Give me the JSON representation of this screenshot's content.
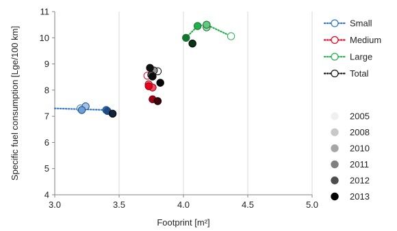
{
  "chart_data": {
    "type": "scatter",
    "xlabel": "Footprint [m²]",
    "ylabel": "Specific fuel consumption [Lge/100 km]",
    "xlim": [
      3.0,
      5.0
    ],
    "ylim": [
      4,
      11
    ],
    "xticks": [
      3.0,
      3.5,
      4.0,
      4.5,
      5.0
    ],
    "xtick_labels": [
      "3.0",
      "3.5",
      "4.0",
      "4.5",
      "5.0"
    ],
    "yticks": [
      4,
      5,
      6,
      7,
      8,
      9,
      10,
      11
    ],
    "ytick_labels": [
      "4",
      "5",
      "6",
      "7",
      "8",
      "9",
      "10",
      "11"
    ],
    "grid": "vertical",
    "legend_position": "right",
    "series": [
      {
        "name": "Small",
        "color": "#2e75c8",
        "points": [
          {
            "x": 3.2,
            "y": 7.3,
            "year": "2005"
          },
          {
            "x": 3.24,
            "y": 7.38,
            "year": "2008"
          },
          {
            "x": 3.21,
            "y": 7.24,
            "year": "2010"
          },
          {
            "x": 3.4,
            "y": 7.24,
            "year": "2011"
          },
          {
            "x": 3.41,
            "y": 7.2,
            "year": "2012"
          },
          {
            "x": 3.45,
            "y": 7.1,
            "year": "2013"
          }
        ]
      },
      {
        "name": "Medium",
        "color": "#e8001c",
        "points": [
          {
            "x": 3.72,
            "y": 8.55,
            "year": "2005"
          },
          {
            "x": 3.73,
            "y": 8.22,
            "year": "2008"
          },
          {
            "x": 3.76,
            "y": 8.1,
            "year": "2010"
          },
          {
            "x": 3.73,
            "y": 8.15,
            "year": "2011"
          },
          {
            "x": 3.76,
            "y": 7.65,
            "year": "2012"
          },
          {
            "x": 3.8,
            "y": 7.58,
            "year": "2013"
          }
        ]
      },
      {
        "name": "Large",
        "color": "#22b04b",
        "points": [
          {
            "x": 4.37,
            "y": 10.06,
            "year": "2005"
          },
          {
            "x": 4.18,
            "y": 10.4,
            "year": "2008"
          },
          {
            "x": 4.18,
            "y": 10.5,
            "year": "2010"
          },
          {
            "x": 4.11,
            "y": 10.45,
            "year": "2011"
          },
          {
            "x": 4.02,
            "y": 10.0,
            "year": "2012"
          },
          {
            "x": 4.07,
            "y": 9.78,
            "year": "2013"
          }
        ]
      },
      {
        "name": "Total",
        "color": "#111111",
        "points": [
          {
            "x": 3.8,
            "y": 8.72,
            "year": "2005"
          },
          {
            "x": 3.77,
            "y": 8.75,
            "year": "2008"
          },
          {
            "x": 3.75,
            "y": 8.58,
            "year": "2010"
          },
          {
            "x": 3.74,
            "y": 8.85,
            "year": "2011"
          },
          {
            "x": 3.76,
            "y": 8.52,
            "year": "2012"
          },
          {
            "x": 3.82,
            "y": 8.28,
            "year": "2013"
          }
        ]
      }
    ],
    "years": [
      {
        "label": "2005",
        "color": "#f0f0f0"
      },
      {
        "label": "2008",
        "color": "#c8c8c8"
      },
      {
        "label": "2010",
        "color": "#a6a6a6"
      },
      {
        "label": "2011",
        "color": "#7f7f7f"
      },
      {
        "label": "2012",
        "color": "#4d4d4d"
      },
      {
        "label": "2013",
        "color": "#000000"
      }
    ]
  }
}
